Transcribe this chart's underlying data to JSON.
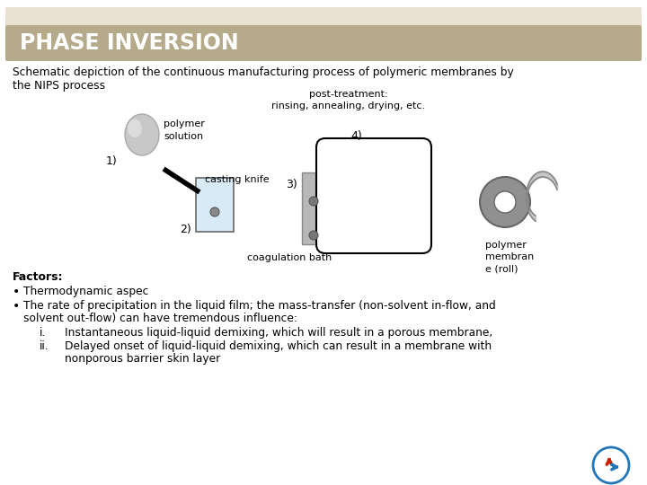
{
  "title": "PHASE INVERSION",
  "subtitle_line1": "Schematic depiction of the continuous manufacturing process of polymeric membranes by",
  "subtitle_line2": "the NIPS process",
  "title_bg_color": "#b5aa8a",
  "title_text_color": "#ffffff",
  "body_bg": "#ffffff",
  "header_stripe_color": "#e8e0d0",
  "factors_title": "Factors:",
  "bullet1": "Thermodynamic aspec",
  "bullet2_line1": "The rate of precipitation in the liquid film; the mass-transfer (non-solvent in-flow, and",
  "bullet2_line2": "solvent out-flow) can have tremendous influence:",
  "sub_i": "Instantaneous liquid-liquid demixing, which will result in a porous membrane,",
  "sub_ii_1": "Delayed onset of liquid-liquid demixing, which can result in a membrane with",
  "sub_ii_2": "nonporous barrier skin layer",
  "post_treatment": "post-treatment:\nrinsing, annealing, drying, etc.",
  "label_polymer_solution": "polymer\nsolution",
  "label_1": "1)",
  "label_2": "2)",
  "label_3": "3)",
  "label_4": "4)",
  "label_casting_knife": "casting knife",
  "label_coagulation_bath": "coagulation bath",
  "label_polymer_membrane": "polymer\nmembran\ne (roll)"
}
